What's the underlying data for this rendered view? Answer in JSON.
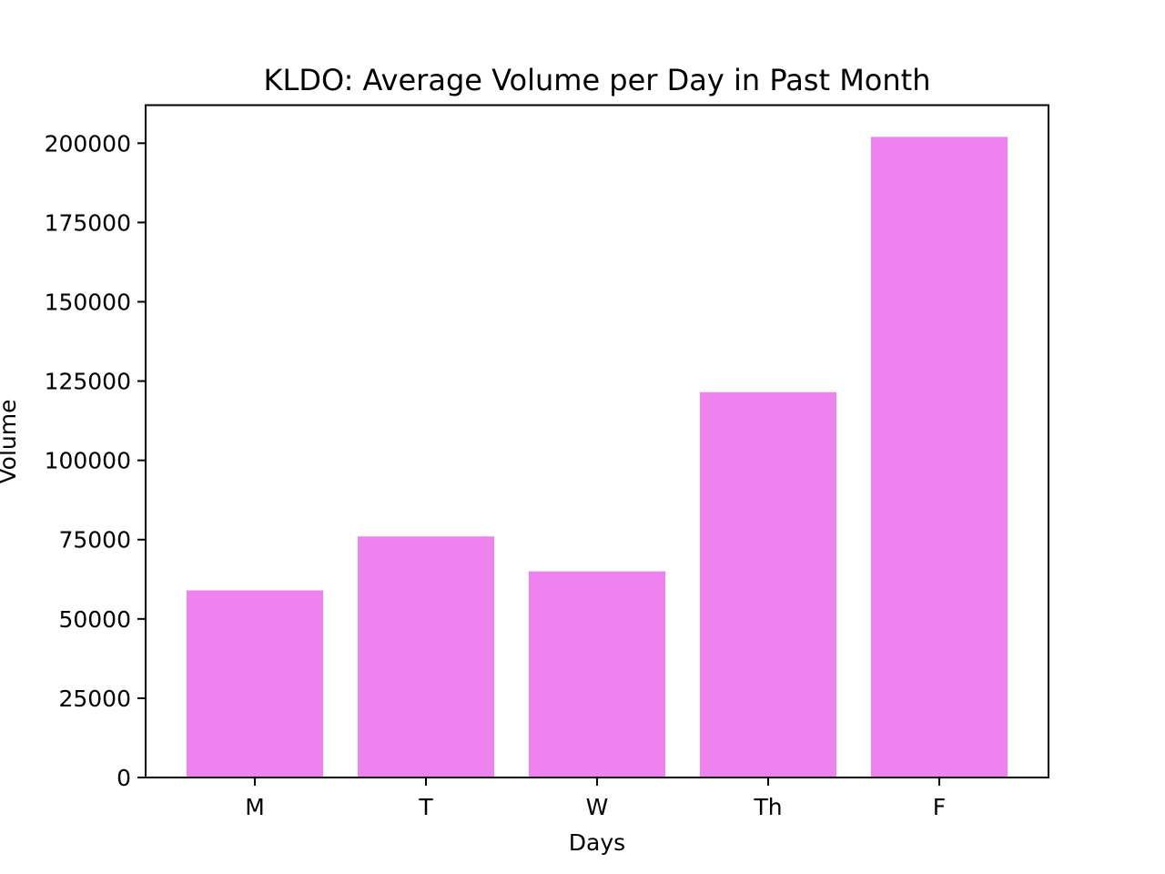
{
  "chart_data": {
    "type": "bar",
    "title": "KLDO: Average Volume per Day in Past Month",
    "xlabel": "Days",
    "ylabel": "Volume",
    "categories": [
      "M",
      "T",
      "W",
      "Th",
      "F"
    ],
    "values": [
      59000,
      76000,
      65000,
      121500,
      202000
    ],
    "ylim": [
      0,
      212000
    ],
    "yticks": [
      0,
      25000,
      50000,
      75000,
      100000,
      125000,
      150000,
      175000,
      200000
    ],
    "bar_color": "#ee82ee",
    "grid": false,
    "legend": "none"
  }
}
